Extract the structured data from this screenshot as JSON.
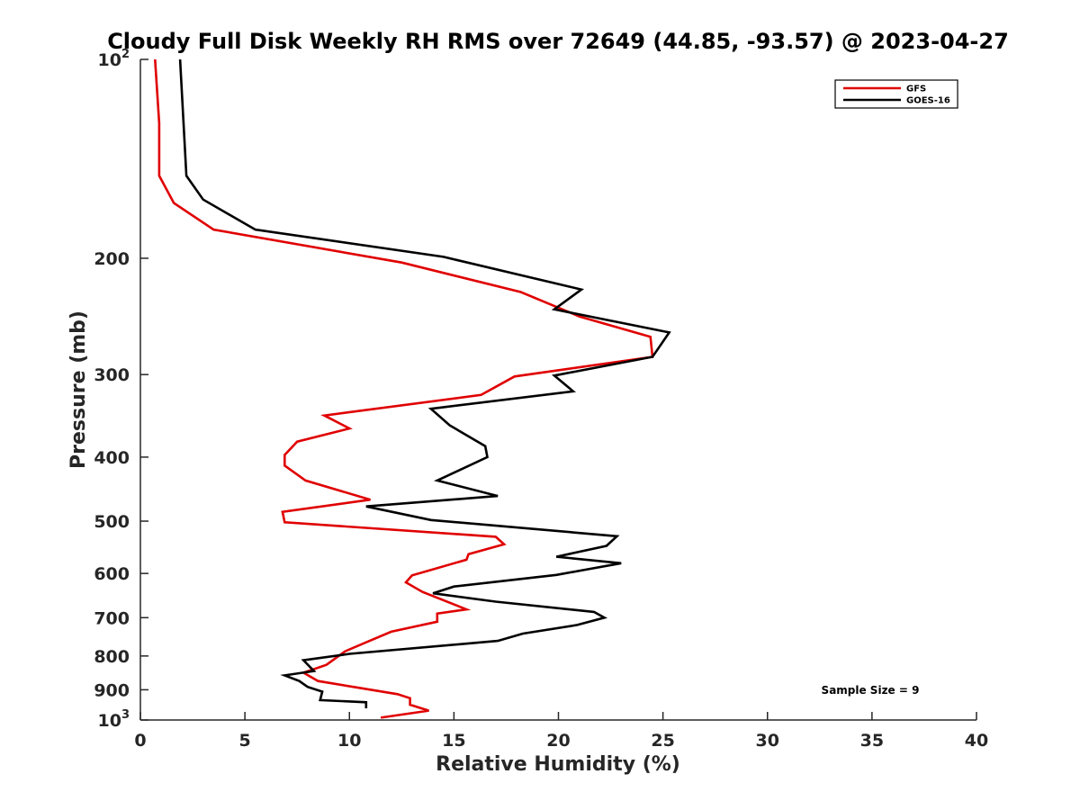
{
  "chart_data": {
    "type": "line",
    "title": "Cloudy Full Disk Weekly RH RMS over 72649 (44.85, -93.57) @ 2023-04-27",
    "xlabel": "Relative Humidity (%)",
    "ylabel": "Pressure (mb)",
    "xlim": [
      0,
      40
    ],
    "ylim": [
      100,
      1000
    ],
    "yscale": "log",
    "y_reversed": true,
    "grid": false,
    "legend_position": "top-right",
    "x_ticks": [
      0,
      5,
      10,
      15,
      20,
      25,
      30,
      35,
      40
    ],
    "y_ticks": [
      {
        "value": 100,
        "base": "10",
        "exp": "2"
      },
      {
        "value": 200,
        "label": "200"
      },
      {
        "value": 300,
        "label": "300"
      },
      {
        "value": 400,
        "label": "400"
      },
      {
        "value": 500,
        "label": "500"
      },
      {
        "value": 600,
        "label": "600"
      },
      {
        "value": 700,
        "label": "700"
      },
      {
        "value": 800,
        "label": "800"
      },
      {
        "value": 900,
        "label": "900"
      },
      {
        "value": 1000,
        "base": "10",
        "exp": "3"
      }
    ],
    "series": [
      {
        "name": "GFS",
        "color": "#e00000",
        "points": [
          [
            0.7,
            100
          ],
          [
            0.9,
            125
          ],
          [
            0.9,
            150
          ],
          [
            1.6,
            165
          ],
          [
            3.5,
            181
          ],
          [
            12.5,
            203
          ],
          [
            18.2,
            225
          ],
          [
            21.0,
            245
          ],
          [
            24.4,
            263
          ],
          [
            24.5,
            282
          ],
          [
            17.9,
            302
          ],
          [
            16.3,
            322
          ],
          [
            8.8,
            346
          ],
          [
            10.0,
            362
          ],
          [
            7.5,
            379
          ],
          [
            6.9,
            397
          ],
          [
            6.9,
            412
          ],
          [
            7.9,
            434
          ],
          [
            11.0,
            464
          ],
          [
            6.8,
            484
          ],
          [
            6.9,
            502
          ],
          [
            17.0,
            528
          ],
          [
            17.4,
            542
          ],
          [
            15.7,
            561
          ],
          [
            15.6,
            572
          ],
          [
            13.0,
            604
          ],
          [
            12.7,
            619
          ],
          [
            13.5,
            640
          ],
          [
            15.6,
            680
          ],
          [
            14.2,
            690
          ],
          [
            14.2,
            710
          ],
          [
            12.0,
            735
          ],
          [
            11.0,
            758
          ],
          [
            9.8,
            787
          ],
          [
            8.9,
            825
          ],
          [
            7.8,
            848
          ],
          [
            8.5,
            873
          ],
          [
            12.3,
            914
          ],
          [
            12.9,
            927
          ],
          [
            12.9,
            948
          ],
          [
            13.8,
            968
          ],
          [
            11.5,
            992
          ]
        ]
      },
      {
        "name": "GOES-16",
        "color": "#000000",
        "points": [
          [
            1.9,
            100
          ],
          [
            2.2,
            150
          ],
          [
            3.0,
            163
          ],
          [
            5.5,
            181
          ],
          [
            14.5,
            199
          ],
          [
            21.1,
            223
          ],
          [
            19.8,
            239
          ],
          [
            25.3,
            259
          ],
          [
            24.5,
            282
          ],
          [
            19.8,
            301
          ],
          [
            20.7,
            318
          ],
          [
            13.9,
            338
          ],
          [
            14.8,
            358
          ],
          [
            16.5,
            385
          ],
          [
            16.6,
            400
          ],
          [
            14.2,
            434
          ],
          [
            17.1,
            458
          ],
          [
            10.8,
            475
          ],
          [
            13.9,
            498
          ],
          [
            22.8,
            527
          ],
          [
            22.3,
            545
          ],
          [
            19.9,
            566
          ],
          [
            23.0,
            579
          ],
          [
            19.9,
            603
          ],
          [
            15.0,
            628
          ],
          [
            14.0,
            643
          ],
          [
            17.0,
            662
          ],
          [
            21.7,
            686
          ],
          [
            22.2,
            700
          ],
          [
            20.9,
            718
          ],
          [
            18.3,
            740
          ],
          [
            17.1,
            759
          ],
          [
            10.0,
            794
          ],
          [
            7.8,
            812
          ],
          [
            8.3,
            843
          ],
          [
            6.9,
            856
          ],
          [
            7.6,
            873
          ],
          [
            8.0,
            891
          ],
          [
            8.7,
            906
          ],
          [
            8.6,
            933
          ],
          [
            10.8,
            940
          ],
          [
            10.8,
            960
          ]
        ]
      }
    ],
    "annotation": "Sample Size = 9"
  }
}
